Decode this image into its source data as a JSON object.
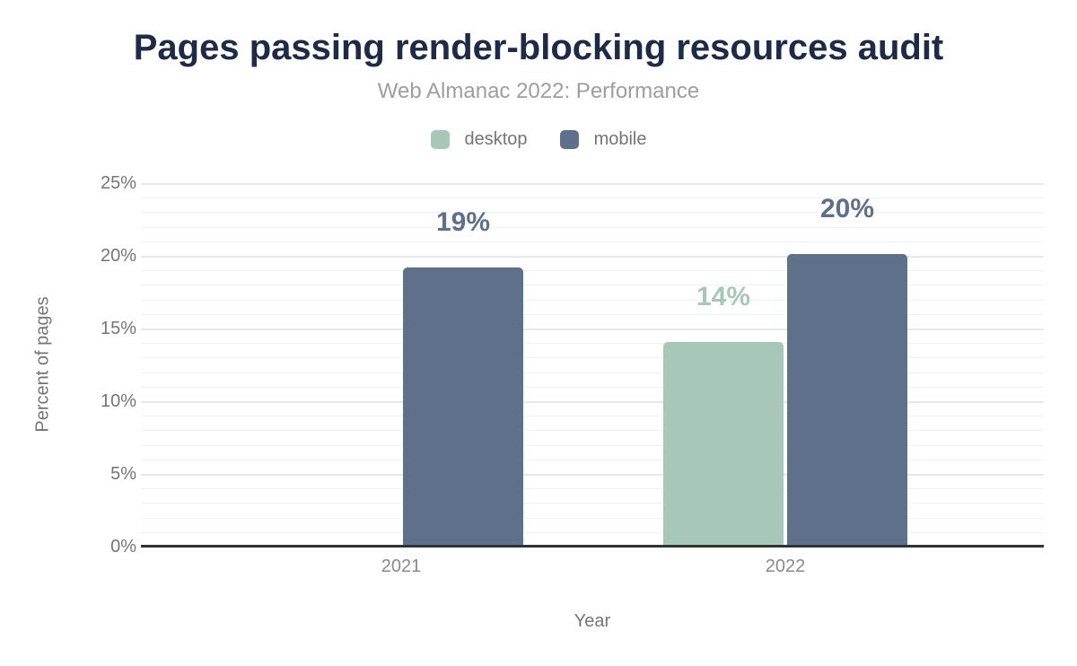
{
  "chart_data": {
    "type": "bar",
    "title": "Pages passing render-blocking resources audit",
    "subtitle": "Web Almanac 2022: Performance",
    "xlabel": "Year",
    "ylabel": "Percent of pages",
    "categories": [
      "2021",
      "2022"
    ],
    "series": [
      {
        "name": "desktop",
        "color": "#a7c8b8",
        "values": [
          null,
          14.1
        ],
        "bar_labels": [
          "",
          "14%"
        ]
      },
      {
        "name": "mobile",
        "color": "#5f708a",
        "values": [
          19.2,
          20.1
        ],
        "bar_labels": [
          "19%",
          "20%"
        ]
      }
    ],
    "ylim": [
      0,
      25
    ],
    "yticks": [
      {
        "label": "0%",
        "value": 0
      },
      {
        "label": "5%",
        "value": 5
      },
      {
        "label": "10%",
        "value": 10
      },
      {
        "label": "15%",
        "value": 15
      },
      {
        "label": "20%",
        "value": 20
      },
      {
        "label": "25%",
        "value": 25
      }
    ],
    "grid": "horizontal",
    "minor_grid_step": 1,
    "major_grid_step": 5,
    "legend_position": "top-center"
  },
  "colors": {
    "title": "#1d2b47",
    "subtitle": "#9e9e9e",
    "axis_text": "#757575",
    "category_text": "#8a8a8a",
    "axis_line": "#333333",
    "minor_grid": "#f2f2f2",
    "major_grid": "#e8e8e8",
    "background": "#ffffff"
  }
}
